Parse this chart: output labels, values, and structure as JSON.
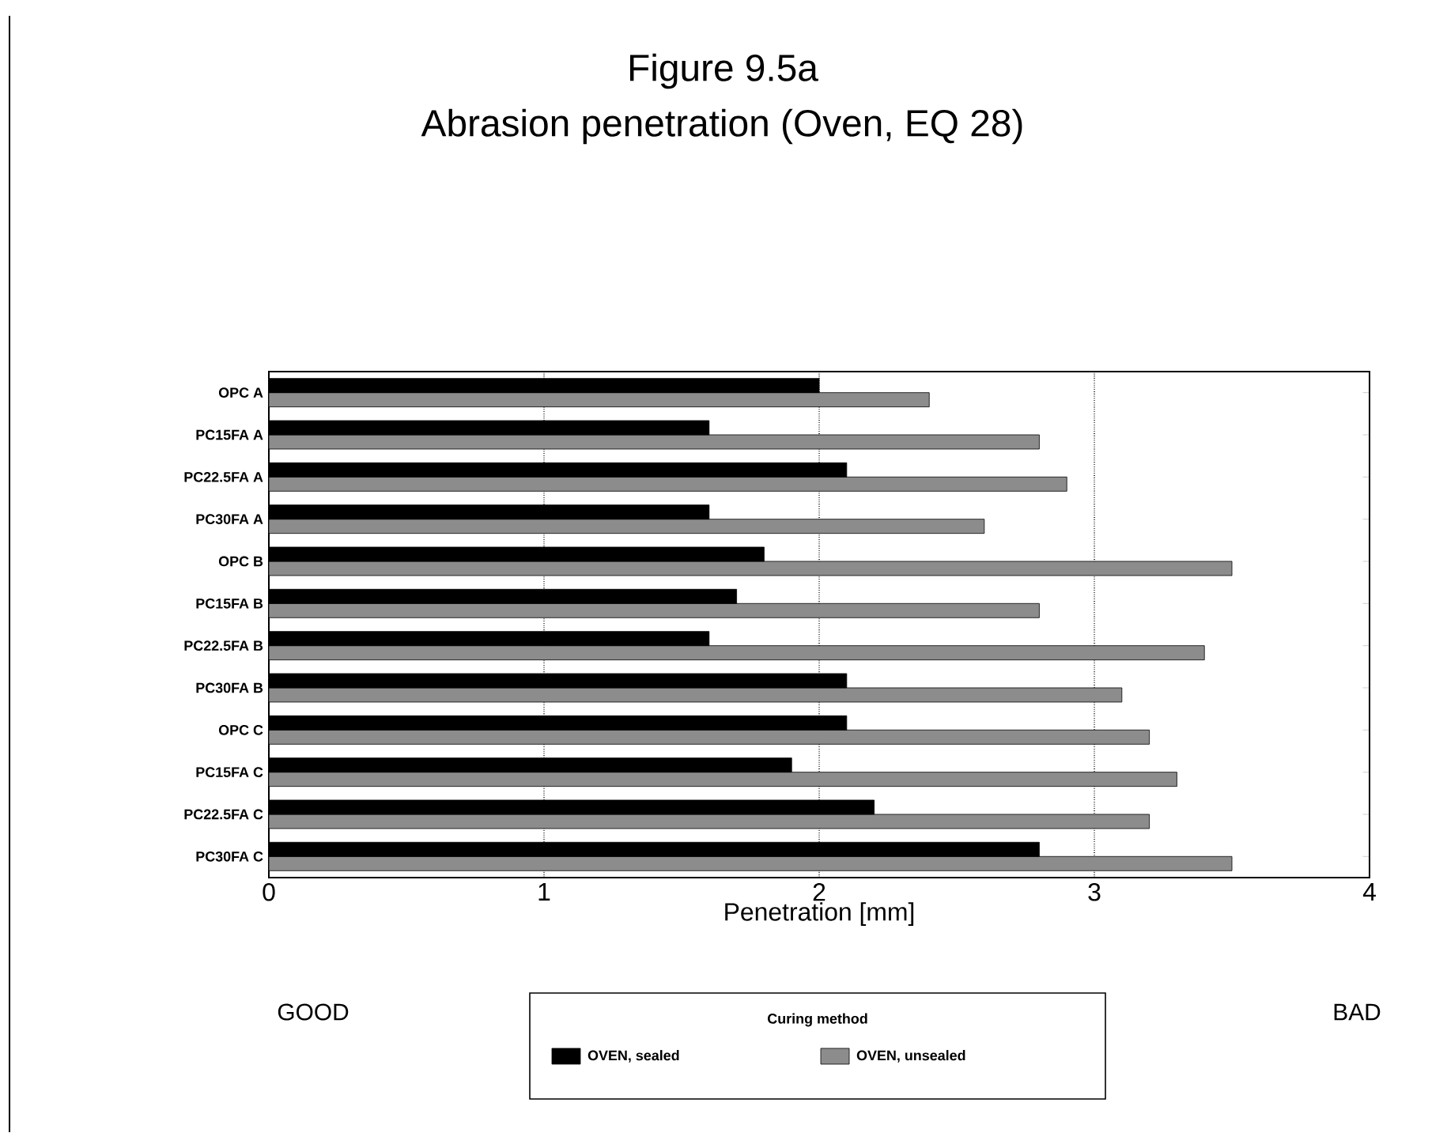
{
  "chart_data": {
    "type": "bar",
    "orientation": "horizontal",
    "title": "Figure 9.5a",
    "subtitle": "Abrasion penetration (Oven, EQ 28)",
    "xlabel": "Penetration [mm]",
    "legend_title": "Curing method",
    "categories": [
      "OPC A",
      "PC15FA A",
      "PC22.5FA A",
      "PC30FA A",
      "OPC B",
      "PC15FA B",
      "PC22.5FA B",
      "PC30FA B",
      "OPC C",
      "PC15FA C",
      "PC22.5FA C",
      "PC30FA C"
    ],
    "series": [
      {
        "name": "OVEN, sealed",
        "color": "#000000",
        "values": [
          2.0,
          1.6,
          2.1,
          1.6,
          1.8,
          1.7,
          1.6,
          2.1,
          2.1,
          1.9,
          2.2,
          2.8
        ]
      },
      {
        "name": "OVEN, unsealed",
        "color": "#8c8c8c",
        "values": [
          2.4,
          2.8,
          2.9,
          2.6,
          3.5,
          2.8,
          3.4,
          3.1,
          3.2,
          3.3,
          3.2,
          3.5
        ]
      }
    ],
    "xlim": [
      0,
      4
    ],
    "xticks": [
      0,
      1,
      2,
      3,
      4
    ],
    "grid": "x",
    "legend": "bottom",
    "annotations": [
      "GOOD",
      "BAD"
    ]
  }
}
